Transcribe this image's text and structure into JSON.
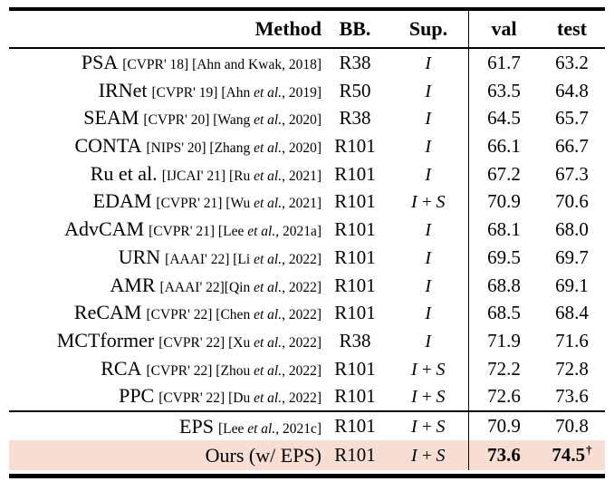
{
  "table": {
    "highlight_color": "#f8ded2",
    "rule_color": "#000000",
    "headers": {
      "method": "Method",
      "bb": "BB.",
      "sup": "Sup.",
      "val": "val",
      "test": "test"
    },
    "rows": [
      {
        "method": "PSA",
        "cite": [
          {
            "text": "[CVPR' 18] [Ahn and Kwak, 2018]"
          }
        ],
        "bb": "R38",
        "sup": "I",
        "val": "61.7",
        "test": "63.2"
      },
      {
        "method": "IRNet",
        "cite": [
          {
            "text": "[CVPR' 19] [Ahn "
          },
          {
            "text": "et al.",
            "italic": true
          },
          {
            "text": ", 2019]"
          }
        ],
        "bb": "R50",
        "sup": "I",
        "val": "63.5",
        "test": "64.8"
      },
      {
        "method": "SEAM",
        "cite": [
          {
            "text": "[CVPR' 20] [Wang "
          },
          {
            "text": "et al.",
            "italic": true
          },
          {
            "text": ", 2020]"
          }
        ],
        "bb": "R38",
        "sup": "I",
        "val": "64.5",
        "test": "65.7"
      },
      {
        "method": "CONTA",
        "cite": [
          {
            "text": "[NIPS' 20] [Zhang "
          },
          {
            "text": "et al.",
            "italic": true
          },
          {
            "text": ", 2020]"
          }
        ],
        "bb": "R101",
        "sup": "I",
        "val": "66.1",
        "test": "66.7"
      },
      {
        "method": "Ru et al.",
        "cite": [
          {
            "text": "[IJCAI' 21] [Ru "
          },
          {
            "text": "et al.",
            "italic": true
          },
          {
            "text": ", 2021]"
          }
        ],
        "bb": "R101",
        "sup": "I",
        "val": "67.2",
        "test": "67.3"
      },
      {
        "method": "EDAM",
        "cite": [
          {
            "text": "[CVPR' 21] [Wu "
          },
          {
            "text": "et al.",
            "italic": true
          },
          {
            "text": ", 2021]"
          }
        ],
        "bb": "R101",
        "sup": "I + S",
        "val": "70.9",
        "test": "70.6"
      },
      {
        "method": "AdvCAM",
        "cite": [
          {
            "text": "[CVPR' 21] [Lee "
          },
          {
            "text": "et al.",
            "italic": true
          },
          {
            "text": ", 2021a]"
          }
        ],
        "bb": "R101",
        "sup": "I",
        "val": "68.1",
        "test": "68.0"
      },
      {
        "method": "URN",
        "cite": [
          {
            "text": "[AAAI' 22] [Li "
          },
          {
            "text": "et al.",
            "italic": true
          },
          {
            "text": ", 2022]"
          }
        ],
        "bb": "R101",
        "sup": "I",
        "val": "69.5",
        "test": "69.7"
      },
      {
        "method": "AMR",
        "cite": [
          {
            "text": "[AAAI' 22][Qin "
          },
          {
            "text": "et al.",
            "italic": true
          },
          {
            "text": ", 2022]"
          }
        ],
        "bb": "R101",
        "sup": "I",
        "val": "68.8",
        "test": "69.1"
      },
      {
        "method": "ReCAM",
        "cite": [
          {
            "text": "[CVPR' 22] [Chen "
          },
          {
            "text": "et al.",
            "italic": true
          },
          {
            "text": ", 2022]"
          }
        ],
        "bb": "R101",
        "sup": "I",
        "val": "68.5",
        "test": "68.4"
      },
      {
        "method": "MCTformer",
        "cite": [
          {
            "text": "[CVPR' 22] [Xu "
          },
          {
            "text": "et al.",
            "italic": true
          },
          {
            "text": ", 2022]"
          }
        ],
        "bb": "R38",
        "sup": "I",
        "val": "71.9",
        "test": "71.6"
      },
      {
        "method": "RCA",
        "cite": [
          {
            "text": "[CVPR' 22] [Zhou "
          },
          {
            "text": "et al.",
            "italic": true
          },
          {
            "text": ", 2022]"
          }
        ],
        "bb": "R101",
        "sup": "I + S",
        "val": "72.2",
        "test": "72.8"
      },
      {
        "method": "PPC",
        "cite": [
          {
            "text": "[CVPR' 22] [Du "
          },
          {
            "text": "et al.",
            "italic": true
          },
          {
            "text": ", 2022]"
          }
        ],
        "bb": "R101",
        "sup": "I + S",
        "val": "72.6",
        "test": "73.6"
      }
    ],
    "footer_rows": [
      {
        "method": "EPS",
        "cite": [
          {
            "text": "[Lee "
          },
          {
            "text": "et al.",
            "italic": true
          },
          {
            "text": ", 2021c]"
          }
        ],
        "bb": "R101",
        "sup": "I + S",
        "val": "70.9",
        "test": "70.8"
      },
      {
        "method": "Ours (w/ EPS)",
        "cite": [],
        "bb": "R101",
        "sup": "I + S",
        "val": "73.6",
        "test": "74.5",
        "test_sup": "†",
        "bold": true,
        "highlight": true
      }
    ]
  }
}
